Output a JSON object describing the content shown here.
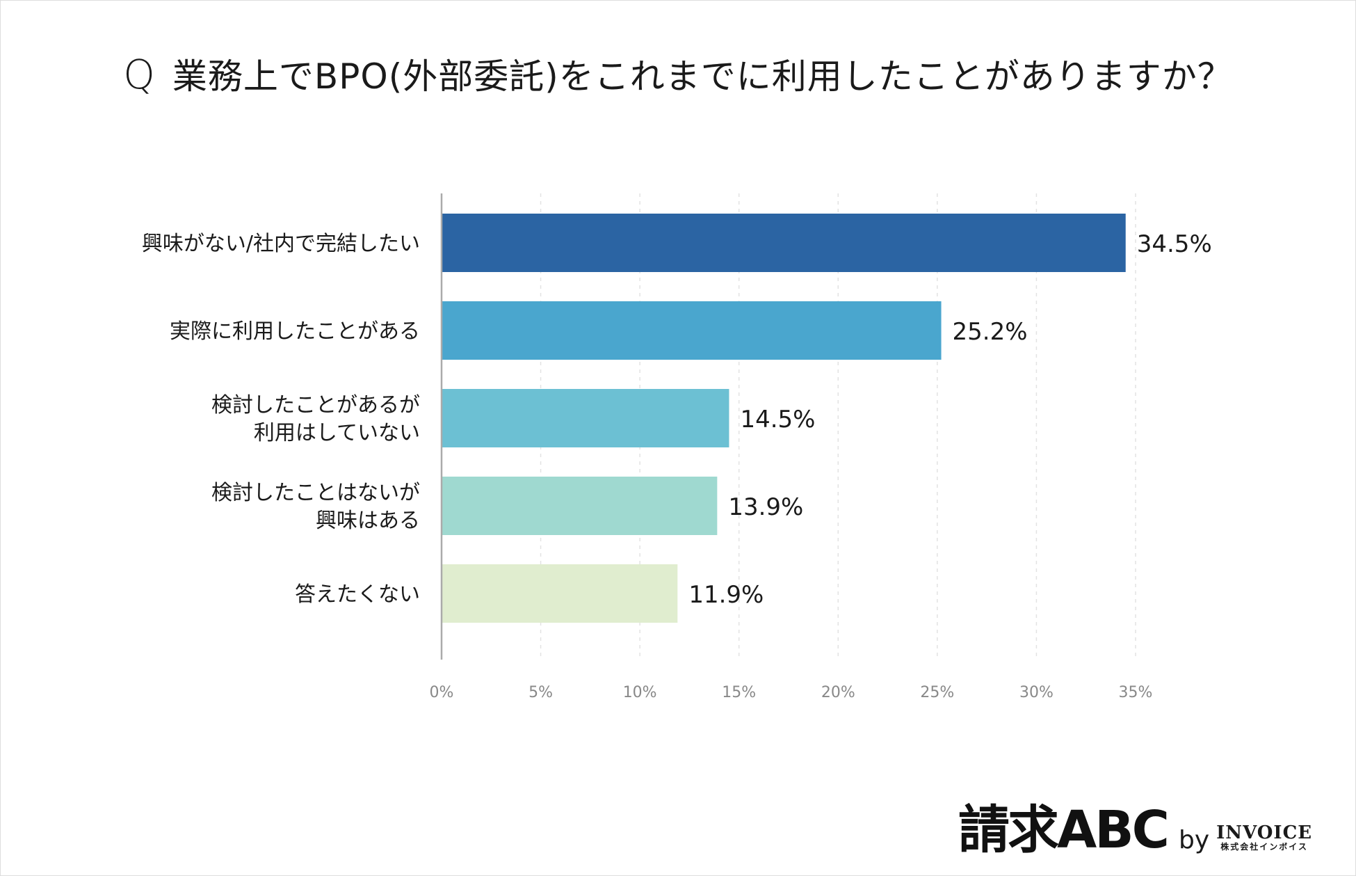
{
  "title": {
    "q": "Q",
    "text": "業務上でBPO(外部委託)をこれまでに利用したことがありますか？"
  },
  "chart_data": {
    "type": "bar",
    "orientation": "horizontal",
    "categories": [
      [
        "興味がない/社内で完結したい"
      ],
      [
        "実際に利用したことがある"
      ],
      [
        "検討したことがあるが",
        "利用はしていない"
      ],
      [
        "検討したことはないが",
        "興味はある"
      ],
      [
        "答えたくない"
      ]
    ],
    "values": [
      34.5,
      25.2,
      14.5,
      13.9,
      11.9
    ],
    "value_labels": [
      "34.5%",
      "25.2%",
      "14.5%",
      "13.9%",
      "11.9%"
    ],
    "colors": [
      "#2b64a3",
      "#4aa6ce",
      "#6cc0d3",
      "#9fd9d0",
      "#e0edcf"
    ],
    "xlim": [
      0,
      35
    ],
    "xticks": [
      0,
      5,
      10,
      15,
      20,
      25,
      30,
      35
    ],
    "xtick_labels": [
      "0%",
      "5%",
      "10%",
      "15%",
      "20%",
      "25%",
      "30%",
      "35%"
    ],
    "grid": "vertical dashed"
  },
  "logo": {
    "brand": "請求ABC",
    "by": "by",
    "invoice": "INVOICE",
    "company": "株式会社インボイス"
  }
}
